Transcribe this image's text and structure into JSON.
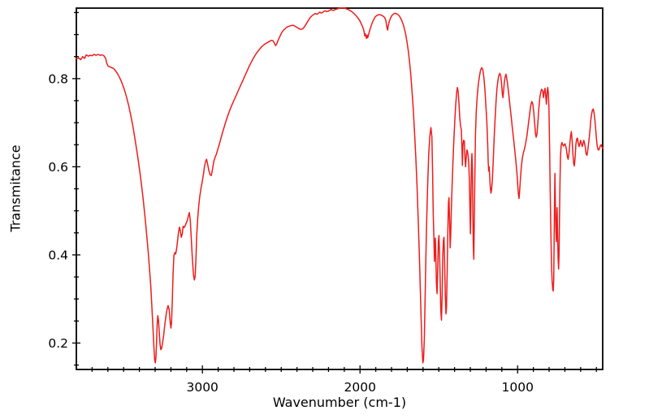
{
  "figure": {
    "background": "#ffffff",
    "axis_color": "#000000",
    "tick_label_color": "#000000"
  },
  "chart_data": {
    "type": "line",
    "title": "",
    "xlabel": "Wavenumber (cm-1)",
    "ylabel": "Transmitance",
    "grid": false,
    "legend": "none",
    "x_axis": {
      "min": 460,
      "max": 3800,
      "reversed": true,
      "major_ticks": [
        3000,
        2000,
        1000
      ],
      "minor_tick_interval": 100
    },
    "y_axis": {
      "min": 0.14,
      "max": 0.96,
      "major_ticks": [
        0.2,
        0.4,
        0.6,
        0.8
      ],
      "minor_tick_interval": 0.05
    },
    "series": [
      {
        "color": "#ee1c1c",
        "x": [
          3800,
          3785,
          3772,
          3760,
          3748,
          3737,
          3725,
          3713,
          3700,
          3688,
          3675,
          3662,
          3650,
          3638,
          3626,
          3614,
          3606,
          3598,
          3588,
          3576,
          3564,
          3552,
          3540,
          3528,
          3516,
          3504,
          3492,
          3480,
          3468,
          3456,
          3444,
          3432,
          3420,
          3410,
          3400,
          3392,
          3384,
          3376,
          3368,
          3360,
          3352,
          3344,
          3336,
          3328,
          3321,
          3314,
          3308,
          3303,
          3299,
          3295,
          3291,
          3287,
          3283,
          3279,
          3274,
          3269,
          3264,
          3259,
          3253,
          3246,
          3239,
          3232,
          3225,
          3218,
          3211,
          3205,
          3200,
          3196,
          3191,
          3186,
          3181,
          3176,
          3170,
          3164,
          3158,
          3152,
          3146,
          3140,
          3134,
          3128,
          3122,
          3116,
          3110,
          3103,
          3096,
          3089,
          3083,
          3077,
          3071,
          3064,
          3057,
          3051,
          3046,
          3041,
          3036,
          3030,
          3024,
          3017,
          3009,
          3001,
          2994,
          2987,
          2980,
          2974,
          2967,
          2959,
          2951,
          2944,
          2936,
          2928,
          2920,
          2911,
          2902,
          2892,
          2882,
          2872,
          2862,
          2852,
          2842,
          2832,
          2822,
          2812,
          2802,
          2792,
          2782,
          2772,
          2762,
          2752,
          2742,
          2732,
          2722,
          2712,
          2702,
          2692,
          2682,
          2672,
          2662,
          2652,
          2642,
          2632,
          2622,
          2612,
          2602,
          2592,
          2582,
          2572,
          2562,
          2552,
          2544,
          2536,
          2529,
          2521,
          2512,
          2503,
          2494,
          2485,
          2476,
          2467,
          2458,
          2449,
          2440,
          2431,
          2422,
          2413,
          2404,
          2395,
          2386,
          2377,
          2369,
          2361,
          2352,
          2343,
          2333,
          2323,
          2313,
          2303,
          2293,
          2283,
          2274,
          2265,
          2256,
          2247,
          2238,
          2229,
          2220,
          2211,
          2202,
          2193,
          2184,
          2175,
          2166,
          2157,
          2148,
          2138,
          2126,
          2112,
          2098,
          2084,
          2070,
          2056,
          2042,
          2028,
          2014,
          2002,
          1994,
          1986,
          1979,
          1974,
          1970,
          1967,
          1963,
          1959,
          1955,
          1951,
          1947,
          1942,
          1936,
          1929,
          1921,
          1913,
          1904,
          1894,
          1884,
          1874,
          1864,
          1854,
          1844,
          1836,
          1829,
          1825,
          1821,
          1814,
          1806,
          1798,
          1790,
          1782,
          1774,
          1766,
          1758,
          1750,
          1742,
          1734,
          1726,
          1718,
          1710,
          1702,
          1694,
          1686,
          1678,
          1670,
          1662,
          1654,
          1646,
          1638,
          1630,
          1622,
          1614,
          1607,
          1601,
          1597,
          1592,
          1587,
          1582,
          1577,
          1571,
          1564,
          1557,
          1550,
          1544,
          1539,
          1535,
          1531,
          1528,
          1525,
          1522,
          1519,
          1515,
          1511,
          1507,
          1503,
          1499,
          1495,
          1491,
          1487,
          1483,
          1479,
          1475,
          1471,
          1467,
          1463,
          1459,
          1455,
          1451,
          1447,
          1443,
          1439,
          1435,
          1431,
          1428,
          1425,
          1421,
          1416,
          1411,
          1405,
          1399,
          1393,
          1387,
          1382,
          1377,
          1372,
          1367,
          1362,
          1357,
          1353,
          1350,
          1347,
          1343,
          1338,
          1334,
          1330,
          1326,
          1322,
          1318,
          1314,
          1310,
          1306,
          1302,
          1299,
          1296,
          1293,
          1290,
          1287,
          1284,
          1281,
          1278,
          1275,
          1271,
          1267,
          1262,
          1256,
          1249,
          1242,
          1235,
          1228,
          1221,
          1214,
          1207,
          1201,
          1195,
          1190,
          1186,
          1183,
          1180,
          1177,
          1173,
          1169,
          1165,
          1160,
          1155,
          1149,
          1143,
          1137,
          1131,
          1125,
          1119,
          1113,
          1107,
          1102,
          1097,
          1093,
          1089,
          1084,
          1079,
          1074,
          1069,
          1064,
          1058,
          1052,
          1046,
          1040,
          1034,
          1028,
          1022,
          1016,
          1010,
          1004,
          999,
          995,
          991,
          987,
          982,
          976,
          970,
          963,
          956,
          949,
          941,
          933,
          925,
          917,
          910,
          904,
          898,
          892,
          887,
          882,
          877,
          871,
          865,
          859,
          853,
          847,
          841,
          836,
          831,
          826,
          821,
          817,
          813,
          809,
          805,
          801,
          797,
          793,
          789,
          785,
          781,
          777,
          774,
          771,
          768,
          765,
          763,
          760,
          757,
          754,
          751,
          749,
          746,
          743,
          740,
          737,
          734,
          731,
          728,
          724,
          719,
          714,
          709,
          704,
          699,
          694,
          689,
          684,
          679,
          674,
          669,
          664,
          659,
          654,
          649,
          644,
          640,
          635,
          630,
          625,
          620,
          615,
          610,
          605,
          600,
          595,
          590,
          585,
          580,
          575,
          570,
          565,
          560,
          555,
          550,
          545,
          540,
          535,
          530,
          525,
          520,
          515,
          510,
          505,
          500,
          495,
          490,
          485,
          480,
          475,
          470,
          465,
          460
        ],
        "y": [
          0.845,
          0.847,
          0.843,
          0.85,
          0.846,
          0.854,
          0.851,
          0.853,
          0.852,
          0.855,
          0.853,
          0.855,
          0.853,
          0.854,
          0.852,
          0.846,
          0.834,
          0.828,
          0.827,
          0.825,
          0.823,
          0.818,
          0.812,
          0.804,
          0.795,
          0.784,
          0.771,
          0.756,
          0.739,
          0.719,
          0.697,
          0.672,
          0.645,
          0.621,
          0.596,
          0.574,
          0.551,
          0.526,
          0.499,
          0.47,
          0.439,
          0.406,
          0.37,
          0.33,
          0.285,
          0.235,
          0.19,
          0.162,
          0.155,
          0.168,
          0.205,
          0.243,
          0.262,
          0.252,
          0.224,
          0.198,
          0.185,
          0.188,
          0.2,
          0.218,
          0.24,
          0.26,
          0.276,
          0.285,
          0.276,
          0.25,
          0.234,
          0.246,
          0.3,
          0.36,
          0.398,
          0.405,
          0.402,
          0.413,
          0.432,
          0.45,
          0.463,
          0.455,
          0.44,
          0.448,
          0.465,
          0.462,
          0.466,
          0.472,
          0.478,
          0.488,
          0.496,
          0.478,
          0.44,
          0.392,
          0.355,
          0.343,
          0.352,
          0.395,
          0.445,
          0.482,
          0.51,
          0.532,
          0.552,
          0.566,
          0.582,
          0.6,
          0.612,
          0.617,
          0.606,
          0.591,
          0.582,
          0.58,
          0.594,
          0.612,
          0.621,
          0.629,
          0.64,
          0.652,
          0.665,
          0.678,
          0.69,
          0.702,
          0.713,
          0.723,
          0.732,
          0.741,
          0.749,
          0.757,
          0.765,
          0.773,
          0.781,
          0.789,
          0.797,
          0.805,
          0.813,
          0.821,
          0.829,
          0.836,
          0.843,
          0.849,
          0.855,
          0.86,
          0.865,
          0.869,
          0.873,
          0.876,
          0.879,
          0.881,
          0.883,
          0.885,
          0.887,
          0.886,
          0.881,
          0.875,
          0.878,
          0.886,
          0.893,
          0.9,
          0.906,
          0.91,
          0.913,
          0.916,
          0.918,
          0.919,
          0.92,
          0.921,
          0.921,
          0.919,
          0.917,
          0.915,
          0.913,
          0.912,
          0.912,
          0.914,
          0.918,
          0.923,
          0.929,
          0.935,
          0.94,
          0.943,
          0.946,
          0.948,
          0.946,
          0.948,
          0.951,
          0.949,
          0.95,
          0.953,
          0.954,
          0.952,
          0.953,
          0.955,
          0.957,
          0.955,
          0.955,
          0.957,
          0.958,
          0.959,
          0.96,
          0.96,
          0.96,
          0.958,
          0.956,
          0.953,
          0.949,
          0.944,
          0.938,
          0.932,
          0.926,
          0.92,
          0.913,
          0.906,
          0.897,
          0.902,
          0.897,
          0.891,
          0.899,
          0.893,
          0.898,
          0.905,
          0.912,
          0.92,
          0.928,
          0.934,
          0.94,
          0.943,
          0.945,
          0.945,
          0.944,
          0.942,
          0.939,
          0.932,
          0.916,
          0.91,
          0.919,
          0.93,
          0.938,
          0.943,
          0.946,
          0.948,
          0.948,
          0.947,
          0.945,
          0.942,
          0.937,
          0.931,
          0.923,
          0.913,
          0.9,
          0.884,
          0.864,
          0.84,
          0.81,
          0.773,
          0.73,
          0.68,
          0.622,
          0.553,
          0.472,
          0.38,
          0.28,
          0.19,
          0.155,
          0.162,
          0.21,
          0.295,
          0.395,
          0.478,
          0.558,
          0.628,
          0.67,
          0.689,
          0.668,
          0.575,
          0.49,
          0.438,
          0.385,
          0.418,
          0.438,
          0.402,
          0.335,
          0.312,
          0.368,
          0.428,
          0.444,
          0.402,
          0.333,
          0.272,
          0.252,
          0.308,
          0.398,
          0.433,
          0.44,
          0.382,
          0.312,
          0.266,
          0.28,
          0.358,
          0.448,
          0.518,
          0.53,
          0.468,
          0.416,
          0.44,
          0.498,
          0.552,
          0.605,
          0.658,
          0.7,
          0.74,
          0.768,
          0.78,
          0.77,
          0.742,
          0.712,
          0.693,
          0.683,
          0.645,
          0.603,
          0.648,
          0.66,
          0.658,
          0.622,
          0.6,
          0.622,
          0.638,
          0.636,
          0.625,
          0.608,
          0.565,
          0.498,
          0.448,
          0.525,
          0.605,
          0.63,
          0.598,
          0.5,
          0.42,
          0.39,
          0.475,
          0.595,
          0.675,
          0.728,
          0.762,
          0.788,
          0.806,
          0.819,
          0.825,
          0.82,
          0.803,
          0.773,
          0.738,
          0.7,
          0.652,
          0.608,
          0.59,
          0.6,
          0.577,
          0.552,
          0.54,
          0.548,
          0.572,
          0.612,
          0.662,
          0.708,
          0.748,
          0.777,
          0.796,
          0.807,
          0.812,
          0.806,
          0.791,
          0.766,
          0.757,
          0.772,
          0.792,
          0.804,
          0.81,
          0.801,
          0.789,
          0.771,
          0.751,
          0.731,
          0.711,
          0.691,
          0.671,
          0.651,
          0.631,
          0.609,
          0.584,
          0.558,
          0.538,
          0.528,
          0.546,
          0.573,
          0.601,
          0.62,
          0.632,
          0.641,
          0.653,
          0.67,
          0.692,
          0.716,
          0.738,
          0.748,
          0.743,
          0.726,
          0.7,
          0.676,
          0.667,
          0.675,
          0.703,
          0.733,
          0.757,
          0.77,
          0.776,
          0.772,
          0.757,
          0.77,
          0.778,
          0.757,
          0.742,
          0.768,
          0.78,
          0.767,
          0.736,
          0.648,
          0.542,
          0.452,
          0.383,
          0.341,
          0.322,
          0.318,
          0.344,
          0.428,
          0.538,
          0.585,
          0.512,
          0.456,
          0.43,
          0.473,
          0.507,
          0.446,
          0.392,
          0.368,
          0.402,
          0.484,
          0.562,
          0.621,
          0.648,
          0.655,
          0.651,
          0.647,
          0.65,
          0.652,
          0.646,
          0.636,
          0.623,
          0.617,
          0.631,
          0.651,
          0.669,
          0.68,
          0.659,
          0.629,
          0.607,
          0.602,
          0.621,
          0.651,
          0.663,
          0.665,
          0.653,
          0.646,
          0.652,
          0.66,
          0.653,
          0.646,
          0.652,
          0.66,
          0.653,
          0.643,
          0.629,
          0.626,
          0.637,
          0.651,
          0.667,
          0.687,
          0.707,
          0.72,
          0.729,
          0.731,
          0.723,
          0.708,
          0.687,
          0.665,
          0.648,
          0.639,
          0.638,
          0.642,
          0.648,
          0.65,
          0.645,
          0.642
        ]
      }
    ]
  }
}
